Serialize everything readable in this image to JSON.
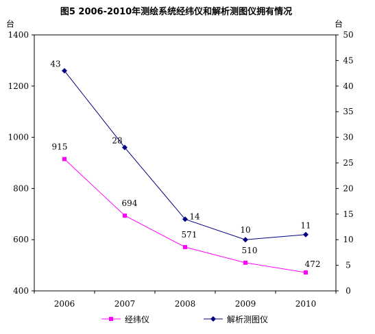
{
  "chart_data": {
    "type": "line",
    "title": "图5  2006-2010年测绘系统经纬仪和解析测图仪拥有情况",
    "categories": [
      "2006",
      "2007",
      "2008",
      "2009",
      "2010"
    ],
    "y_left": {
      "unit": "台",
      "ylim": [
        400,
        1400
      ],
      "ticks": [
        "400",
        "600",
        "800",
        "1000",
        "1200",
        "1400"
      ]
    },
    "y_right": {
      "unit": "台",
      "ylim": [
        0,
        50
      ],
      "ticks": [
        "0",
        "5",
        "10",
        "15",
        "20",
        "25",
        "30",
        "35",
        "40",
        "45",
        "50"
      ]
    },
    "series": [
      {
        "name": "经纬仪",
        "axis": "left",
        "color": "#ff00ff",
        "marker": "square",
        "values": [
          915,
          694,
          571,
          510,
          472
        ]
      },
      {
        "name": "解析测图仪",
        "axis": "right",
        "color": "#000080",
        "marker": "diamond",
        "values": [
          43,
          28,
          14,
          10,
          11
        ]
      }
    ],
    "grid": false,
    "legend_position": "bottom"
  }
}
